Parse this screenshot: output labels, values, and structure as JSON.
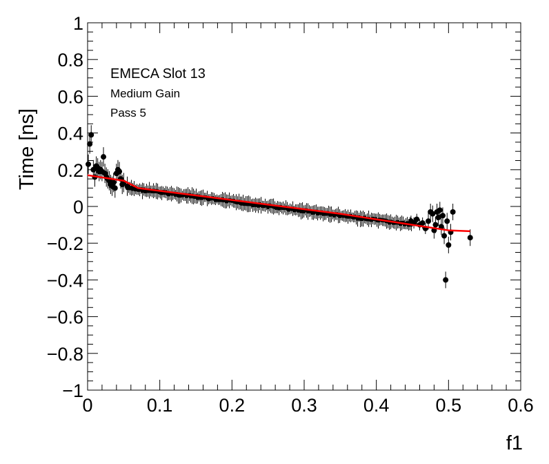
{
  "chart_data": {
    "type": "scatter",
    "title": "",
    "xlabel": "f1",
    "ylabel": "Time [ns]",
    "xlim": [
      0,
      0.6
    ],
    "ylim": [
      -1,
      1
    ],
    "x_ticks": [
      "0",
      "0.1",
      "0.2",
      "0.3",
      "0.4",
      "0.5",
      "0.6"
    ],
    "y_ticks": [
      "−1",
      "−0.8",
      "−0.6",
      "−0.4",
      "−0.2",
      "0",
      "0.2",
      "0.4",
      "0.6",
      "0.8",
      "1"
    ],
    "grid": false,
    "annotations": [
      "EMECA Slot 13",
      "Medium Gain",
      "Pass 5"
    ],
    "colors": {
      "points": "#000000",
      "fit": "#ff0000"
    },
    "series": [
      {
        "type": "scatter",
        "points": [
          [
            0.001,
            0.23
          ],
          [
            0.003,
            0.34
          ],
          [
            0.005,
            0.39
          ],
          [
            0.008,
            0.2
          ],
          [
            0.01,
            0.16
          ],
          [
            0.012,
            0.22
          ],
          [
            0.014,
            0.21
          ],
          [
            0.016,
            0.19
          ],
          [
            0.018,
            0.2
          ],
          [
            0.02,
            0.19
          ],
          [
            0.022,
            0.27
          ],
          [
            0.024,
            0.18
          ],
          [
            0.026,
            0.16
          ],
          [
            0.028,
            0.15
          ],
          [
            0.03,
            0.14
          ],
          [
            0.032,
            0.12
          ],
          [
            0.034,
            0.11
          ],
          [
            0.036,
            0.13
          ],
          [
            0.038,
            0.1
          ],
          [
            0.04,
            0.18
          ],
          [
            0.042,
            0.2
          ],
          [
            0.044,
            0.19
          ],
          [
            0.046,
            0.15
          ],
          [
            0.048,
            0.12
          ],
          [
            0.05,
            0.13
          ],
          [
            0.055,
            0.11
          ],
          [
            0.448,
            -0.08
          ],
          [
            0.452,
            -0.09
          ],
          [
            0.456,
            -0.07
          ],
          [
            0.46,
            -0.1
          ],
          [
            0.464,
            -0.09
          ],
          [
            0.468,
            -0.12
          ],
          [
            0.472,
            -0.08
          ],
          [
            0.475,
            -0.03
          ],
          [
            0.478,
            -0.04
          ],
          [
            0.48,
            -0.13
          ],
          [
            0.482,
            -0.1
          ],
          [
            0.484,
            -0.03
          ],
          [
            0.486,
            -0.06
          ],
          [
            0.488,
            -0.02
          ],
          [
            0.49,
            -0.11
          ],
          [
            0.492,
            -0.05
          ],
          [
            0.494,
            -0.16
          ],
          [
            0.496,
            -0.4
          ],
          [
            0.498,
            -0.08
          ],
          [
            0.5,
            -0.21
          ],
          [
            0.503,
            -0.14
          ],
          [
            0.506,
            -0.03
          ],
          [
            0.53,
            -0.17
          ]
        ],
        "dense_band": {
          "x_range": [
            0.055,
            0.45
          ],
          "y_at_x_start": 0.1,
          "y_at_x_end": -0.1,
          "error": 0.035
        }
      },
      {
        "type": "line",
        "points": [
          [
            0.0,
            0.17
          ],
          [
            0.05,
            0.14
          ],
          [
            0.07,
            0.1
          ],
          [
            0.15,
            0.06
          ],
          [
            0.25,
            0.01
          ],
          [
            0.35,
            -0.04
          ],
          [
            0.45,
            -0.1
          ],
          [
            0.5,
            -0.13
          ],
          [
            0.53,
            -0.135
          ]
        ]
      }
    ]
  }
}
